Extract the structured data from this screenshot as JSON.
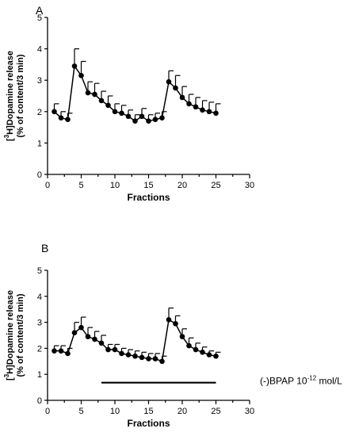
{
  "chart_data": [
    {
      "panel": "A",
      "type": "line",
      "xlabel": "Fractions",
      "ylabel": {
        "pre": "[",
        "sup": "3",
        "main": "H]Dopamine release",
        "line2": "(% of content/3 min)"
      },
      "xlim": [
        0,
        30
      ],
      "ylim": [
        0,
        5
      ],
      "xticks": [
        0,
        5,
        10,
        15,
        20,
        25,
        30
      ],
      "yticks": [
        0,
        1,
        2,
        3,
        4,
        5
      ],
      "grid": false,
      "series": [
        {
          "x": [
            1,
            2,
            3,
            4,
            5,
            6,
            7,
            8,
            9,
            10,
            11,
            12,
            13,
            14,
            15,
            16,
            17,
            18,
            19,
            20,
            21,
            22,
            23,
            24,
            25
          ],
          "y": [
            2.0,
            1.8,
            1.75,
            3.45,
            3.15,
            2.6,
            2.55,
            2.35,
            2.2,
            2.0,
            1.95,
            1.85,
            1.7,
            1.85,
            1.7,
            1.75,
            1.8,
            2.95,
            2.75,
            2.45,
            2.25,
            2.15,
            2.05,
            2.0,
            1.95
          ],
          "error": [
            0.25,
            0.2,
            0.2,
            0.55,
            0.45,
            0.35,
            0.35,
            0.3,
            0.3,
            0.25,
            0.25,
            0.2,
            0.2,
            0.25,
            0.2,
            0.2,
            0.2,
            0.35,
            0.4,
            0.35,
            0.3,
            0.3,
            0.3,
            0.3,
            0.3
          ]
        }
      ]
    },
    {
      "panel": "B",
      "type": "line",
      "xlabel": "Fractions",
      "ylabel": {
        "pre": "[",
        "sup": "3",
        "main": "H]Dopamine release",
        "line2": "(% of content/3 min)"
      },
      "xlim": [
        0,
        30
      ],
      "ylim": [
        0,
        5
      ],
      "xticks": [
        0,
        5,
        10,
        15,
        20,
        25,
        30
      ],
      "yticks": [
        0,
        1,
        2,
        3,
        4,
        5
      ],
      "grid": false,
      "series": [
        {
          "x": [
            1,
            2,
            3,
            4,
            5,
            6,
            7,
            8,
            9,
            10,
            11,
            12,
            13,
            14,
            15,
            16,
            17,
            18,
            19,
            20,
            21,
            22,
            23,
            24,
            25
          ],
          "y": [
            1.9,
            1.9,
            1.8,
            2.6,
            2.8,
            2.45,
            2.35,
            2.2,
            1.95,
            1.95,
            1.8,
            1.75,
            1.7,
            1.65,
            1.6,
            1.6,
            1.5,
            3.1,
            2.95,
            2.45,
            2.1,
            1.95,
            1.85,
            1.75,
            1.7
          ],
          "error": [
            0.2,
            0.2,
            0.2,
            0.4,
            0.4,
            0.35,
            0.3,
            0.3,
            0.2,
            0.2,
            0.2,
            0.2,
            0.2,
            0.2,
            0.2,
            0.2,
            0.2,
            0.45,
            0.3,
            0.3,
            0.3,
            0.25,
            0.2,
            0.15,
            0.15
          ]
        }
      ],
      "annotation": {
        "text_pre": "(-)BPAP 10",
        "text_sup": "-12",
        "text_post": " mol/L",
        "bar_x": [
          8,
          25
        ]
      }
    }
  ]
}
